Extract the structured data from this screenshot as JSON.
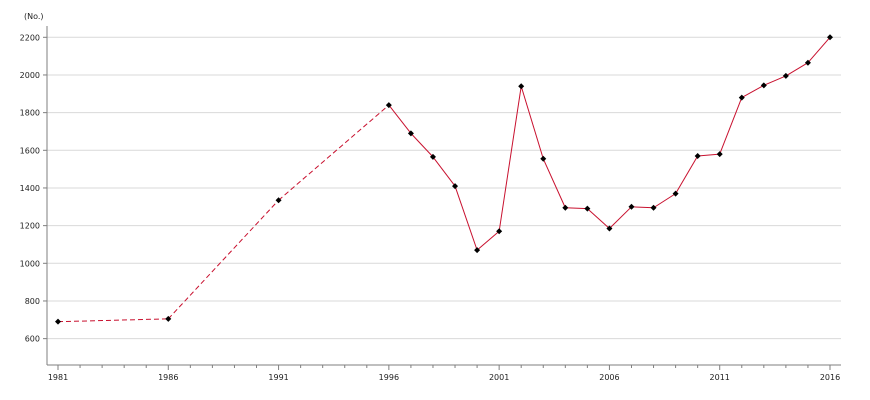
{
  "chart_data": {
    "type": "line",
    "title": "",
    "xlabel": "",
    "ylabel": "(No.)",
    "xlim": [
      1981,
      2016
    ],
    "ylim": [
      460,
      2260
    ],
    "grid": true,
    "legend": "none",
    "x_ticks": [
      1981,
      1986,
      1991,
      1996,
      2001,
      2006,
      2011,
      2016
    ],
    "x_tick_labels": [
      "1981",
      "1986",
      "1991",
      "1996",
      "2001",
      "2006",
      "2011",
      "2016"
    ],
    "y_ticks": [
      600,
      800,
      1000,
      1200,
      1400,
      1600,
      1800,
      2000,
      2200
    ],
    "y_tick_labels": [
      "600",
      "800",
      "1000",
      "1200",
      "1400",
      "1600",
      "1800",
      "2000",
      "2200"
    ],
    "series": [
      {
        "x": [
          1981,
          1986,
          1991,
          1996,
          1997,
          1998,
          1999,
          2000,
          2001,
          2002,
          2003,
          2004,
          2005,
          2006,
          2007,
          2008,
          2009,
          2010,
          2011,
          2012,
          2013,
          2014,
          2015,
          2016
        ],
        "y": [
          690,
          705,
          1335,
          1840,
          1690,
          1565,
          1410,
          1070,
          1170,
          1940,
          1555,
          1295,
          1290,
          1185,
          1300,
          1295,
          1370,
          1570,
          1580,
          1880,
          1945,
          1995,
          2065,
          2200
        ],
        "dashed_until_x": 1996
      }
    ],
    "colors": {
      "line": "#c8102e",
      "marker": "#000000",
      "grid": "#d9d9d9",
      "axis": "#7f7f7f"
    }
  }
}
